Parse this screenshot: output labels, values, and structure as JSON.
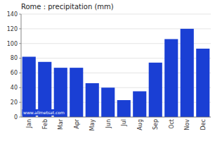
{
  "chart_data": {
    "type": "bar",
    "title": "Rome : precipitation (mm)",
    "categories": [
      "Jan",
      "Feb",
      "Mar",
      "Apr",
      "May",
      "Jun",
      "Jul",
      "Aug",
      "Sep",
      "Oct",
      "Nov",
      "Dec"
    ],
    "values": [
      82,
      75,
      67,
      67,
      46,
      40,
      23,
      35,
      74,
      106,
      120,
      93
    ],
    "color": "#1a3fd4",
    "ylim": [
      0,
      140
    ],
    "yticks": [
      0,
      20,
      40,
      60,
      80,
      100,
      120,
      140
    ],
    "grid": true,
    "annotations": [
      "www.allmetsat.com"
    ]
  }
}
